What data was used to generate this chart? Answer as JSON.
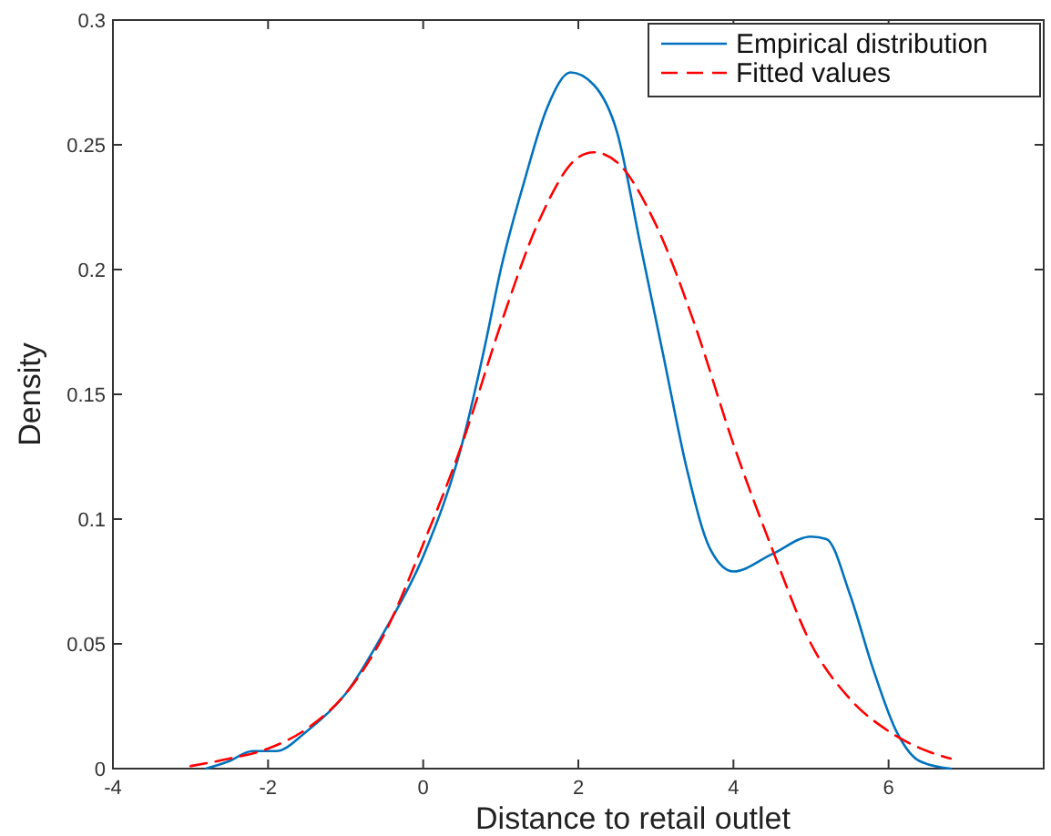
{
  "chart_data": {
    "type": "line",
    "xlabel": "Distance to retail outlet",
    "ylabel": "Density",
    "xlim": [
      -4,
      8
    ],
    "xticks": [
      -4,
      -2,
      0,
      2,
      4,
      6
    ],
    "ylim": [
      0,
      0.3
    ],
    "yticks": [
      0,
      0.05,
      0.1,
      0.15,
      0.2,
      0.25,
      0.3
    ],
    "legend": "top right",
    "grid": false,
    "series": [
      {
        "name": "Empirical distribution",
        "color": "#0072bd",
        "line_style": "solid",
        "x": [
          -2.8,
          -2.5,
          -2.2,
          -1.9,
          -1.5,
          -1,
          -0.5,
          0,
          0.5,
          0.8,
          1,
          1.3,
          1.6,
          1.9,
          2.2,
          2.5,
          2.8,
          3.1,
          3.4,
          3.7,
          4,
          4.5,
          5,
          5.2,
          5.5,
          5.8,
          6.1,
          6.4,
          6.8
        ],
        "values": [
          0,
          0.003,
          0.007,
          0.007,
          0.015,
          0.03,
          0.055,
          0.085,
          0.13,
          0.17,
          0.2,
          0.235,
          0.265,
          0.279,
          0.274,
          0.255,
          0.21,
          0.165,
          0.12,
          0.088,
          0.079,
          0.086,
          0.093,
          0.092,
          0.07,
          0.04,
          0.015,
          0.003,
          0
        ]
      },
      {
        "name": "Fitted values",
        "color": "#ff0000",
        "line_style": "dashed",
        "x": [
          -3,
          -2.5,
          -2,
          -1.5,
          -1,
          -0.5,
          0,
          0.5,
          1,
          1.5,
          2,
          2.2,
          2.5,
          3,
          3.5,
          4,
          4.5,
          5,
          5.5,
          6,
          6.5,
          6.8
        ],
        "values": [
          0.001,
          0.004,
          0.008,
          0.016,
          0.03,
          0.054,
          0.09,
          0.13,
          0.178,
          0.22,
          0.245,
          0.247,
          0.243,
          0.218,
          0.178,
          0.13,
          0.088,
          0.05,
          0.028,
          0.015,
          0.007,
          0.004
        ]
      }
    ]
  }
}
